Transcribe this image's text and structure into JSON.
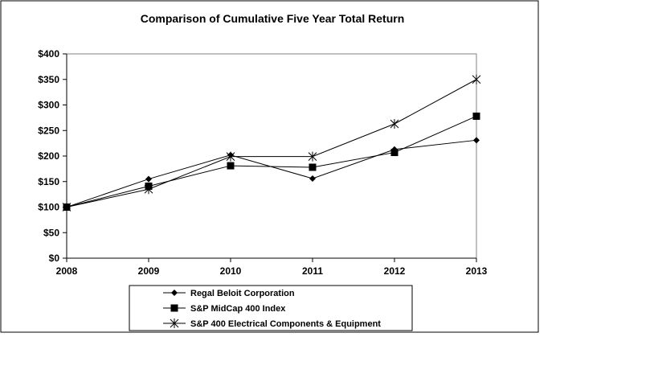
{
  "chart_data": {
    "type": "line",
    "title": "Comparison of Cumulative Five Year Total Return",
    "xlabel": "",
    "ylabel": "",
    "categories": [
      "2008",
      "2009",
      "2010",
      "2011",
      "2012",
      "2013"
    ],
    "ylim": [
      0,
      400
    ],
    "yticks": [
      0,
      50,
      100,
      150,
      200,
      250,
      300,
      350,
      400
    ],
    "ytick_labels": [
      "$0",
      "$50",
      "$100",
      "$150",
      "$200",
      "$250",
      "$300",
      "$350",
      "$400"
    ],
    "grid": false,
    "legend_position": "bottom-center",
    "series": [
      {
        "name": "Regal Beloit Corporation",
        "marker": "diamond",
        "color": "#000000",
        "values": [
          100,
          155,
          202,
          156,
          213,
          231
        ]
      },
      {
        "name": "S&P MidCap 400 Index",
        "marker": "square",
        "color": "#000000",
        "values": [
          100,
          141,
          181,
          178,
          207,
          278
        ]
      },
      {
        "name": "S&P 400 Electrical Components & Equipment",
        "marker": "asterisk",
        "color": "#000000",
        "values": [
          100,
          135,
          199,
          199,
          263,
          350
        ]
      }
    ]
  }
}
